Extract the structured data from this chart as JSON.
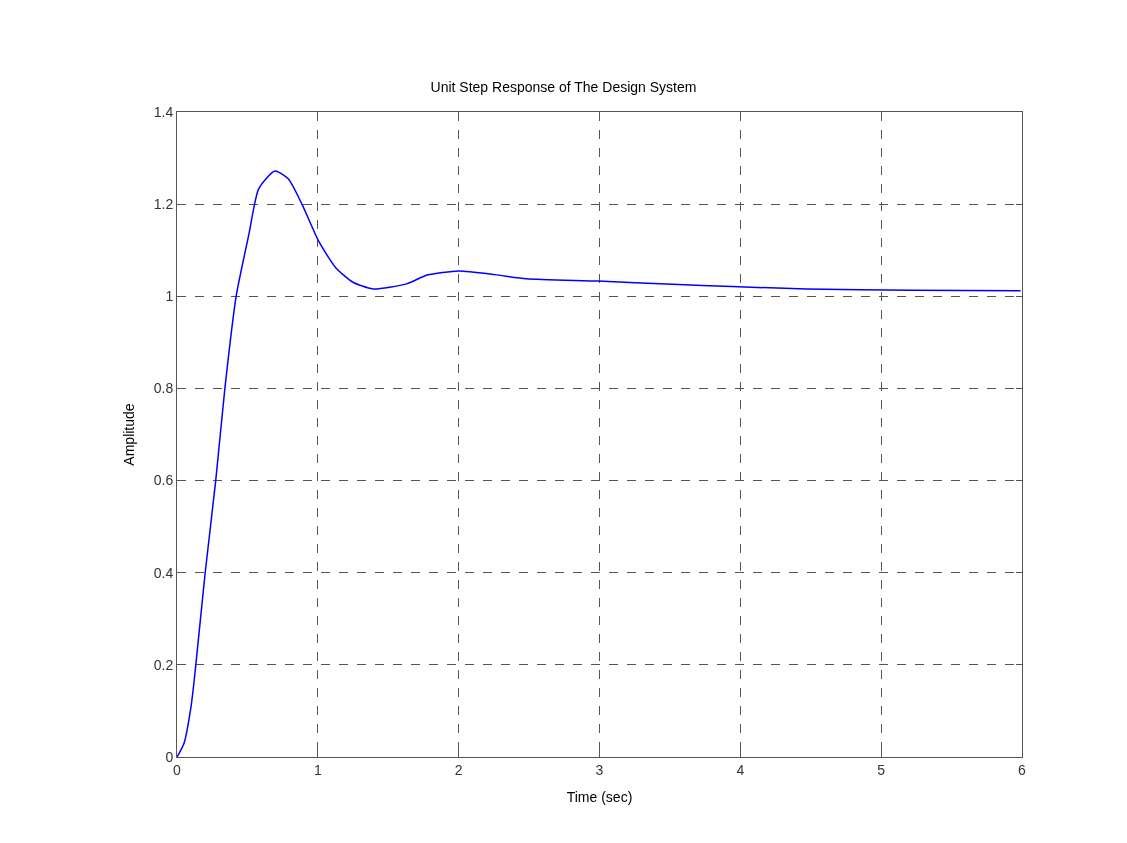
{
  "chart_data": {
    "type": "line",
    "title": "Unit Step Response of The Design System",
    "xlabel": "Time (sec)",
    "ylabel": "Amplitude",
    "x": [
      0,
      0.05,
      0.1,
      0.13,
      0.2,
      0.275,
      0.34,
      0.42,
      0.51,
      0.58,
      0.695,
      0.79,
      0.887,
      1.007,
      1.127,
      1.247,
      1.39,
      1.63,
      1.776,
      2.0,
      2.258,
      2.48,
      2.99,
      3.52,
      3.94,
      4.47,
      5.23,
      5.99
    ],
    "series": [
      {
        "color": "#0000ff",
        "values": [
          0,
          0.03,
          0.11,
          0.189,
          0.4,
          0.6,
          0.8,
          1.0,
          1.134,
          1.233,
          1.272,
          1.255,
          1.2,
          1.119,
          1.062,
          1.031,
          1.016,
          1.027,
          1.046,
          1.055,
          1.047,
          1.038,
          1.033,
          1.026,
          1.021,
          1.016,
          1.013,
          1.012
        ]
      }
    ],
    "xlim": [
      0,
      6
    ],
    "xticks": [
      0,
      1,
      2,
      3,
      4,
      5,
      6
    ],
    "ylim": [
      0,
      1.4
    ],
    "yticks": [
      0,
      0.2,
      0.4,
      0.6,
      0.8,
      1,
      1.2,
      1.4
    ],
    "grid": true,
    "line_style": "solid",
    "marker": "none"
  }
}
